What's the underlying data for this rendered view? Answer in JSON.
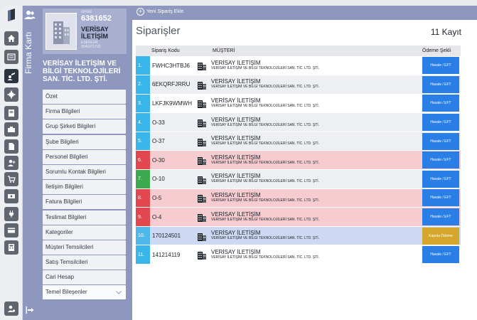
{
  "sidebar_title": "Firma Kartı",
  "company": {
    "id_label": "crmid",
    "id": "6381652",
    "short_name_1": "VERİSAY",
    "short_name_2": "İLETİŞİM",
    "district": "ESENLER",
    "code": "9240371722",
    "full_name": "VERİSAY İLETİŞİM VE BİLGİ TEKNOLOJİLERİ SAN. TİC. LTD. ŞTİ."
  },
  "menu": [
    "Özet",
    "Firma Bilgileri",
    "Grup Şirketi Bilgileri",
    "Şube Bilgileri",
    "Personel Bilgileri",
    "Sorumlu Kontak Bilgileri",
    "İletişim Bilgileri",
    "Fatura Bilgileri",
    "Teslimat Bilgileri",
    "Kategoriler",
    "Müşteri Temsilcileri",
    "Satış Temsilcileri",
    "Cari Hesap"
  ],
  "menu_open": "Temel Bileşenler",
  "icons": {
    "rail": [
      "home-icon",
      "list-icon",
      "contacts-icon",
      "gear-icon",
      "document-icon",
      "briefcase-icon",
      "file-icon",
      "user-add-icon",
      "cart-icon",
      "cash-icon",
      "plug-icon",
      "card-icon",
      "calculator-icon",
      "user-settings-icon"
    ],
    "logout": "logout-icon",
    "building": "building-icon"
  },
  "colors": {
    "accent": "#8e98bf",
    "index_blue": "#39b6e9",
    "index_green": "#3daa50",
    "index_red": "#e2474f",
    "pay_blue": "#2a7fe6",
    "pay_gold": "#d4a72c",
    "row_pink": "#f6ccd0",
    "row_blue": "#cdd9f2"
  },
  "topbar": {
    "add_label": "Yeni Sipariş Ekle"
  },
  "page": {
    "title": "Siparişler",
    "count": "11 Kayıt"
  },
  "table": {
    "headers": {
      "code": "Sipariş Kodu",
      "customer": "MÜŞTERİ",
      "payment": "Ödeme Şekli"
    },
    "rows": [
      {
        "index": "1.",
        "code": "FWHC3HTBJ6",
        "customer": "VERİSAY İLETİŞİM",
        "customer_full": "VERİSAY İLETİŞİM VE BİLGİ TEKNOLOJİLERİ SAN. TİC. LTD. ŞTİ.",
        "payment": "Havale / EFT"
      },
      {
        "index": "2.",
        "code": "6EKQRFJRRU",
        "customer": "VERİSAY İLETİŞİM",
        "customer_full": "VERİSAY İLETİŞİM VE BİLGİ TEKNOLOJİLERİ SAN. TİC. LTD. ŞTİ.",
        "payment": "Havale / EFT"
      },
      {
        "index": "3.",
        "code": "LKFJK9WMWH",
        "customer": "VERİSAY İLETİŞİM",
        "customer_full": "VERİSAY İLETİŞİM VE BİLGİ TEKNOLOJİLERİ SAN. TİC. LTD. ŞTİ.",
        "payment": "Havale / EFT"
      },
      {
        "index": "4.",
        "code": "O-33",
        "customer": "VERİSAY İLETİŞİM",
        "customer_full": "VERİSAY İLETİŞİM VE BİLGİ TEKNOLOJİLERİ SAN. TİC. LTD. ŞTİ.",
        "payment": "Havale / EFT"
      },
      {
        "index": "5.",
        "code": "O-37",
        "customer": "VERİSAY İLETİŞİM",
        "customer_full": "VERİSAY İLETİŞİM VE BİLGİ TEKNOLOJİLERİ SAN. TİC. LTD. ŞTİ.",
        "payment": "Havale / EFT"
      },
      {
        "index": "6.",
        "code": "O-30",
        "customer": "VERİSAY İLETİŞİM",
        "customer_full": "VERİSAY İLETİŞİM VE BİLGİ TEKNOLOJİLERİ SAN. TİC. LTD. ŞTİ.",
        "payment": "Havale / EFT"
      },
      {
        "index": "7.",
        "code": "O-10",
        "customer": "VERİSAY İLETİŞİM",
        "customer_full": "VERİSAY İLETİŞİM VE BİLGİ TEKNOLOJİLERİ SAN. TİC. LTD. ŞTİ.",
        "payment": "Havale / EFT"
      },
      {
        "index": "8.",
        "code": "O-5",
        "customer": "VERİSAY İLETİŞİM",
        "customer_full": "VERİSAY İLETİŞİM VE BİLGİ TEKNOLOJİLERİ SAN. TİC. LTD. ŞTİ.",
        "payment": "Havale / EFT"
      },
      {
        "index": "9.",
        "code": "O-4",
        "customer": "VERİSAY İLETİŞİM",
        "customer_full": "VERİSAY İLETİŞİM VE BİLGİ TEKNOLOJİLERİ SAN. TİC. LTD. ŞTİ.",
        "payment": "Havale / EFT"
      },
      {
        "index": "10.",
        "code": "170124501",
        "customer": "VERİSAY İLETİŞİM",
        "customer_full": "VERİSAY İLETİŞİM VE BİLGİ TEKNOLOJİLERİ SAN. TİC. LTD. ŞTİ.",
        "payment": "Kapıda Ödeme"
      },
      {
        "index": "11.",
        "code": "141214119",
        "customer": "VERİSAY İLETİŞİM",
        "customer_full": "VERİSAY İLETİŞİM VE BİLGİ TEKNOLOJİLERİ SAN. TİC. LTD. ŞTİ.",
        "payment": "Havale / EFT"
      }
    ]
  }
}
